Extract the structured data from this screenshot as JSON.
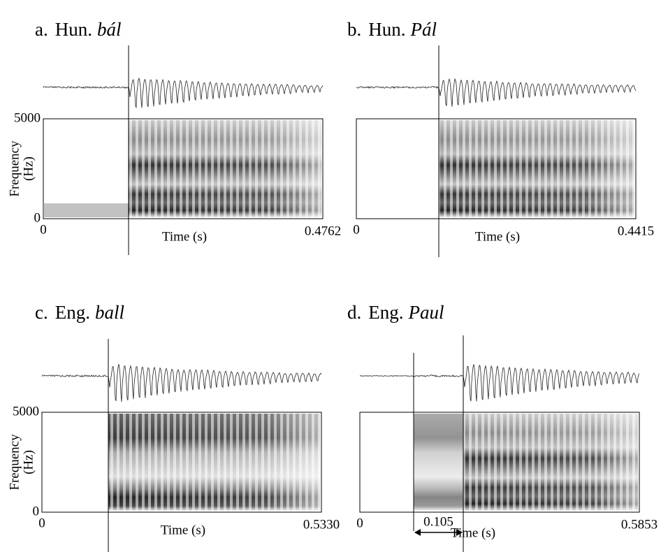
{
  "panels": [
    {
      "letter": "a.",
      "language": "Hun.",
      "word": "bál",
      "y_label": [
        "Frequency",
        "(Hz)"
      ],
      "y_max": "5000",
      "y_min": "0",
      "x_min": "0",
      "x_max": "0.4762",
      "x_label": "Time (s)"
    },
    {
      "letter": "b.",
      "language": "Hun.",
      "word": "Pál",
      "x_min": "0",
      "x_max": "0.4415",
      "x_label": "Time (s)"
    },
    {
      "letter": "c.",
      "language": "Eng.",
      "word": "ball",
      "y_label": [
        "Frequency",
        "(Hz)"
      ],
      "y_max": "5000",
      "y_min": "0",
      "x_min": "0",
      "x_max": "0.5330",
      "x_label": "Time (s)"
    },
    {
      "letter": "d.",
      "language": "Eng.",
      "word": "Paul",
      "x_min": "0",
      "x_max": "0.5853",
      "x_label": "Time (s)",
      "duration": "0.105"
    }
  ]
}
